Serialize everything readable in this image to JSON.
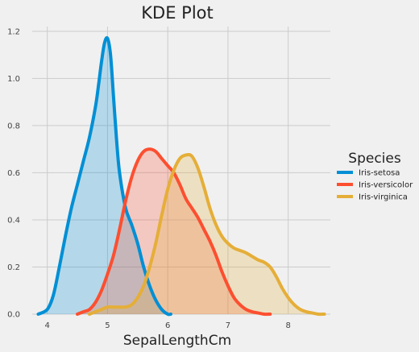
{
  "chart_data": {
    "type": "area",
    "title": "KDE Plot",
    "xlabel": "SepalLengthCm",
    "ylabel": "",
    "xlim": [
      3.75,
      8.7
    ],
    "ylim": [
      0,
      1.22
    ],
    "x_ticks": [
      4,
      5,
      6,
      7,
      8
    ],
    "y_ticks": [
      0.0,
      0.2,
      0.4,
      0.6,
      0.8,
      1.0,
      1.2
    ],
    "grid": true,
    "legend": {
      "title": "Species",
      "placement": "right"
    },
    "series": [
      {
        "name": "Iris-setosa",
        "color": "#008fd5",
        "x": [
          3.85,
          4.0,
          4.1,
          4.2,
          4.3,
          4.4,
          4.5,
          4.6,
          4.7,
          4.8,
          4.85,
          4.9,
          4.95,
          5.0,
          5.05,
          5.1,
          5.15,
          5.2,
          5.3,
          5.4,
          5.5,
          5.6,
          5.7,
          5.8,
          5.9,
          6.0,
          6.05
        ],
        "y": [
          0.0,
          0.02,
          0.08,
          0.2,
          0.33,
          0.45,
          0.55,
          0.65,
          0.75,
          0.88,
          0.97,
          1.07,
          1.15,
          1.17,
          1.1,
          0.92,
          0.74,
          0.6,
          0.45,
          0.38,
          0.3,
          0.2,
          0.12,
          0.06,
          0.02,
          0.0,
          0.0
        ]
      },
      {
        "name": "Iris-versicolor",
        "color": "#fc4f30",
        "x": [
          4.5,
          4.6,
          4.7,
          4.8,
          4.9,
          5.0,
          5.1,
          5.2,
          5.3,
          5.4,
          5.5,
          5.6,
          5.7,
          5.8,
          5.9,
          6.0,
          6.1,
          6.2,
          6.3,
          6.4,
          6.5,
          6.6,
          6.7,
          6.8,
          6.9,
          7.0,
          7.1,
          7.2,
          7.3,
          7.4,
          7.5,
          7.6,
          7.7
        ],
        "y": [
          0.0,
          0.01,
          0.02,
          0.05,
          0.1,
          0.17,
          0.25,
          0.36,
          0.48,
          0.58,
          0.65,
          0.69,
          0.7,
          0.69,
          0.66,
          0.63,
          0.6,
          0.55,
          0.49,
          0.45,
          0.41,
          0.36,
          0.31,
          0.25,
          0.18,
          0.12,
          0.07,
          0.04,
          0.02,
          0.01,
          0.005,
          0.0,
          0.0
        ]
      },
      {
        "name": "Iris-virginica",
        "color": "#e5ae38",
        "x": [
          4.7,
          4.8,
          4.9,
          5.0,
          5.1,
          5.2,
          5.3,
          5.4,
          5.5,
          5.6,
          5.7,
          5.8,
          5.9,
          6.0,
          6.1,
          6.2,
          6.3,
          6.4,
          6.5,
          6.6,
          6.7,
          6.8,
          6.9,
          7.0,
          7.1,
          7.2,
          7.3,
          7.4,
          7.5,
          7.6,
          7.7,
          7.8,
          7.9,
          8.0,
          8.1,
          8.2,
          8.3,
          8.4,
          8.5,
          8.6
        ],
        "y": [
          0.0,
          0.01,
          0.02,
          0.03,
          0.03,
          0.03,
          0.03,
          0.04,
          0.07,
          0.12,
          0.2,
          0.3,
          0.42,
          0.53,
          0.61,
          0.66,
          0.675,
          0.67,
          0.62,
          0.54,
          0.45,
          0.38,
          0.33,
          0.3,
          0.28,
          0.27,
          0.26,
          0.245,
          0.23,
          0.22,
          0.2,
          0.16,
          0.11,
          0.07,
          0.04,
          0.02,
          0.01,
          0.005,
          0.0,
          0.0
        ]
      }
    ]
  },
  "figure": {
    "background": "#f0f0f0",
    "grid_color": "#cbcbcb"
  }
}
